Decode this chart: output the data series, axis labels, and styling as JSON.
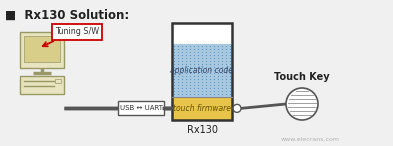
{
  "title": "■  Rx130 Solution:",
  "title_color": "#222222",
  "bg_color": "#f0f0f0",
  "tuning_label": "Tuning S/W",
  "tuning_box_color": "#cc0000",
  "usb_label": "USB ↔ UART",
  "app_code_label": "application code",
  "firmware_label": "touch firmware",
  "rx130_label": "Rx130",
  "touch_key_label": "Touch Key",
  "monitor_body_color": "#e8e4c0",
  "monitor_screen_color": "#d8ce8a",
  "monitor_edge_color": "#999966",
  "box_border_color": "#333333",
  "app_code_fill": "#a8c8e0",
  "firmware_fill": "#e8c44a",
  "white_top_fill": "#ffffff",
  "watermark": "www.elecrans.com",
  "watermark_color": "#aaaaaa",
  "line_color": "#555555",
  "usb_box_color": "#555555"
}
